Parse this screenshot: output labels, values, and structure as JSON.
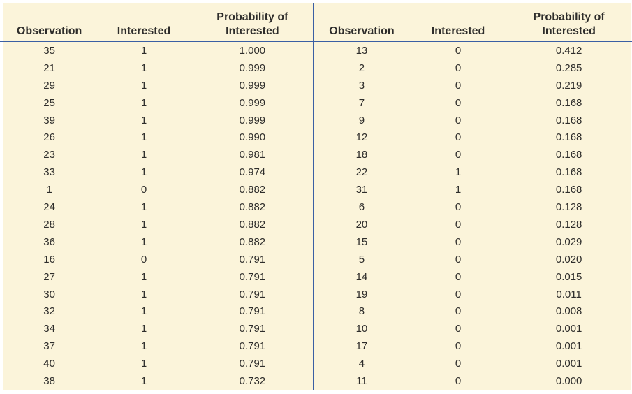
{
  "table": {
    "header": {
      "observation": "Observation",
      "interested": "Interested",
      "probability_line1": "Probability of",
      "probability_line2": "Interested"
    },
    "columns": [
      "Observation",
      "Interested",
      "Probability of Interested"
    ],
    "left_rows": [
      [
        "35",
        "1",
        "1.000"
      ],
      [
        "21",
        "1",
        "0.999"
      ],
      [
        "29",
        "1",
        "0.999"
      ],
      [
        "25",
        "1",
        "0.999"
      ],
      [
        "39",
        "1",
        "0.999"
      ],
      [
        "26",
        "1",
        "0.990"
      ],
      [
        "23",
        "1",
        "0.981"
      ],
      [
        "33",
        "1",
        "0.974"
      ],
      [
        "1",
        "0",
        "0.882"
      ],
      [
        "24",
        "1",
        "0.882"
      ],
      [
        "28",
        "1",
        "0.882"
      ],
      [
        "36",
        "1",
        "0.882"
      ],
      [
        "16",
        "0",
        "0.791"
      ],
      [
        "27",
        "1",
        "0.791"
      ],
      [
        "30",
        "1",
        "0.791"
      ],
      [
        "32",
        "1",
        "0.791"
      ],
      [
        "34",
        "1",
        "0.791"
      ],
      [
        "37",
        "1",
        "0.791"
      ],
      [
        "40",
        "1",
        "0.791"
      ],
      [
        "38",
        "1",
        "0.732"
      ]
    ],
    "right_rows": [
      [
        "13",
        "0",
        "0.412"
      ],
      [
        "2",
        "0",
        "0.285"
      ],
      [
        "3",
        "0",
        "0.219"
      ],
      [
        "7",
        "0",
        "0.168"
      ],
      [
        "9",
        "0",
        "0.168"
      ],
      [
        "12",
        "0",
        "0.168"
      ],
      [
        "18",
        "0",
        "0.168"
      ],
      [
        "22",
        "1",
        "0.168"
      ],
      [
        "31",
        "1",
        "0.168"
      ],
      [
        "6",
        "0",
        "0.128"
      ],
      [
        "20",
        "0",
        "0.128"
      ],
      [
        "15",
        "0",
        "0.029"
      ],
      [
        "5",
        "0",
        "0.020"
      ],
      [
        "14",
        "0",
        "0.015"
      ],
      [
        "19",
        "0",
        "0.011"
      ],
      [
        "8",
        "0",
        "0.008"
      ],
      [
        "10",
        "0",
        "0.001"
      ],
      [
        "17",
        "0",
        "0.001"
      ],
      [
        "4",
        "0",
        "0.001"
      ],
      [
        "11",
        "0",
        "0.000"
      ]
    ]
  },
  "chart_data": {
    "type": "table",
    "title": "",
    "columns": [
      "Observation",
      "Interested",
      "Probability of Interested"
    ],
    "rows": [
      [
        35,
        1,
        1.0
      ],
      [
        21,
        1,
        0.999
      ],
      [
        29,
        1,
        0.999
      ],
      [
        25,
        1,
        0.999
      ],
      [
        39,
        1,
        0.999
      ],
      [
        26,
        1,
        0.99
      ],
      [
        23,
        1,
        0.981
      ],
      [
        33,
        1,
        0.974
      ],
      [
        1,
        0,
        0.882
      ],
      [
        24,
        1,
        0.882
      ],
      [
        28,
        1,
        0.882
      ],
      [
        36,
        1,
        0.882
      ],
      [
        16,
        0,
        0.791
      ],
      [
        27,
        1,
        0.791
      ],
      [
        30,
        1,
        0.791
      ],
      [
        32,
        1,
        0.791
      ],
      [
        34,
        1,
        0.791
      ],
      [
        37,
        1,
        0.791
      ],
      [
        40,
        1,
        0.791
      ],
      [
        38,
        1,
        0.732
      ],
      [
        13,
        0,
        0.412
      ],
      [
        2,
        0,
        0.285
      ],
      [
        3,
        0,
        0.219
      ],
      [
        7,
        0,
        0.168
      ],
      [
        9,
        0,
        0.168
      ],
      [
        12,
        0,
        0.168
      ],
      [
        18,
        0,
        0.168
      ],
      [
        22,
        1,
        0.168
      ],
      [
        31,
        1,
        0.168
      ],
      [
        6,
        0,
        0.128
      ],
      [
        20,
        0,
        0.128
      ],
      [
        15,
        0,
        0.029
      ],
      [
        5,
        0,
        0.02
      ],
      [
        14,
        0,
        0.015
      ],
      [
        19,
        0,
        0.011
      ],
      [
        8,
        0,
        0.008
      ],
      [
        10,
        0,
        0.001
      ],
      [
        17,
        0,
        0.001
      ],
      [
        4,
        0,
        0.001
      ],
      [
        11,
        0,
        0.0
      ]
    ]
  },
  "colors": {
    "panel_background": "#fbf4da",
    "rule_blue": "#3a5fa4",
    "text": "#2e2d2b"
  }
}
